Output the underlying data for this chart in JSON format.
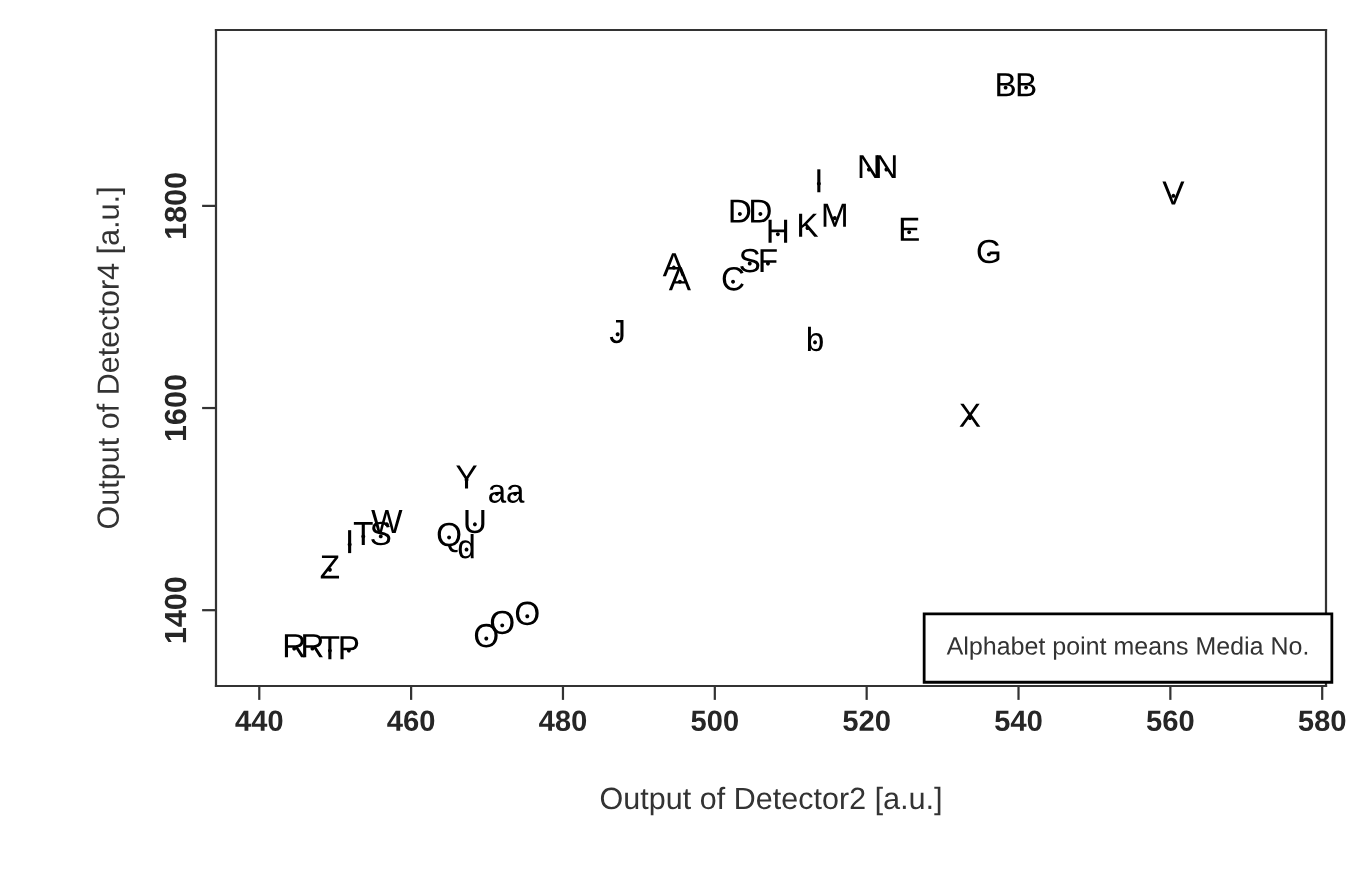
{
  "chart_data": {
    "type": "scatter",
    "xlabel": "Output of Detector2 [a.u.]",
    "ylabel": "Output of Detector4 [a.u.]",
    "x": [
      538.3,
      541.0,
      560.4,
      513.7,
      520.3,
      522.6,
      503.3,
      506.0,
      515.8,
      512.2,
      508.3,
      525.6,
      536.1,
      494.6,
      495.4,
      502.4,
      504.6,
      507.0,
      487.2,
      513.2,
      533.6,
      467.3,
      471.3,
      473.7,
      468.4,
      465.0,
      467.3,
      456.8,
      456.0,
      453.7,
      451.9,
      449.3,
      444.6,
      447.0,
      449.3,
      451.8,
      469.9,
      472.0,
      475.3
    ],
    "values": [
      1917,
      1917,
      1810,
      1822,
      1836,
      1836,
      1792,
      1792,
      1788,
      1778,
      1772,
      1774,
      1752,
      1739,
      1725,
      1725,
      1743,
      1743,
      1673,
      1665,
      1590,
      1529,
      1515,
      1515,
      1485,
      1472,
      1460,
      1485,
      1473,
      1473,
      1465,
      1440,
      1362,
      1362,
      1360,
      1360,
      1372,
      1385,
      1394
    ],
    "value_labels": [
      "B",
      "B",
      "V",
      "I",
      "N",
      "N",
      "D",
      "D",
      "M",
      "K",
      "H",
      "E",
      "G",
      "A",
      "A",
      "C",
      "S",
      "F",
      "J",
      "b",
      "X",
      "Y",
      "a",
      "a",
      "U",
      "Q",
      "d",
      "W",
      "S",
      "T",
      "I",
      "Z",
      "R",
      "R",
      "T",
      "P",
      "O",
      "O",
      "O"
    ],
    "color": "#000000",
    "xlim": [
      434.3,
      580.5
    ],
    "ylim": [
      1325,
      1974
    ],
    "xticks": [
      440,
      460,
      480,
      500,
      520,
      540,
      560,
      580
    ],
    "yticks": [
      1400,
      1600,
      1800
    ],
    "annotations": [
      "Alphabet point means Media No."
    ],
    "grid": false,
    "legend": false
  }
}
